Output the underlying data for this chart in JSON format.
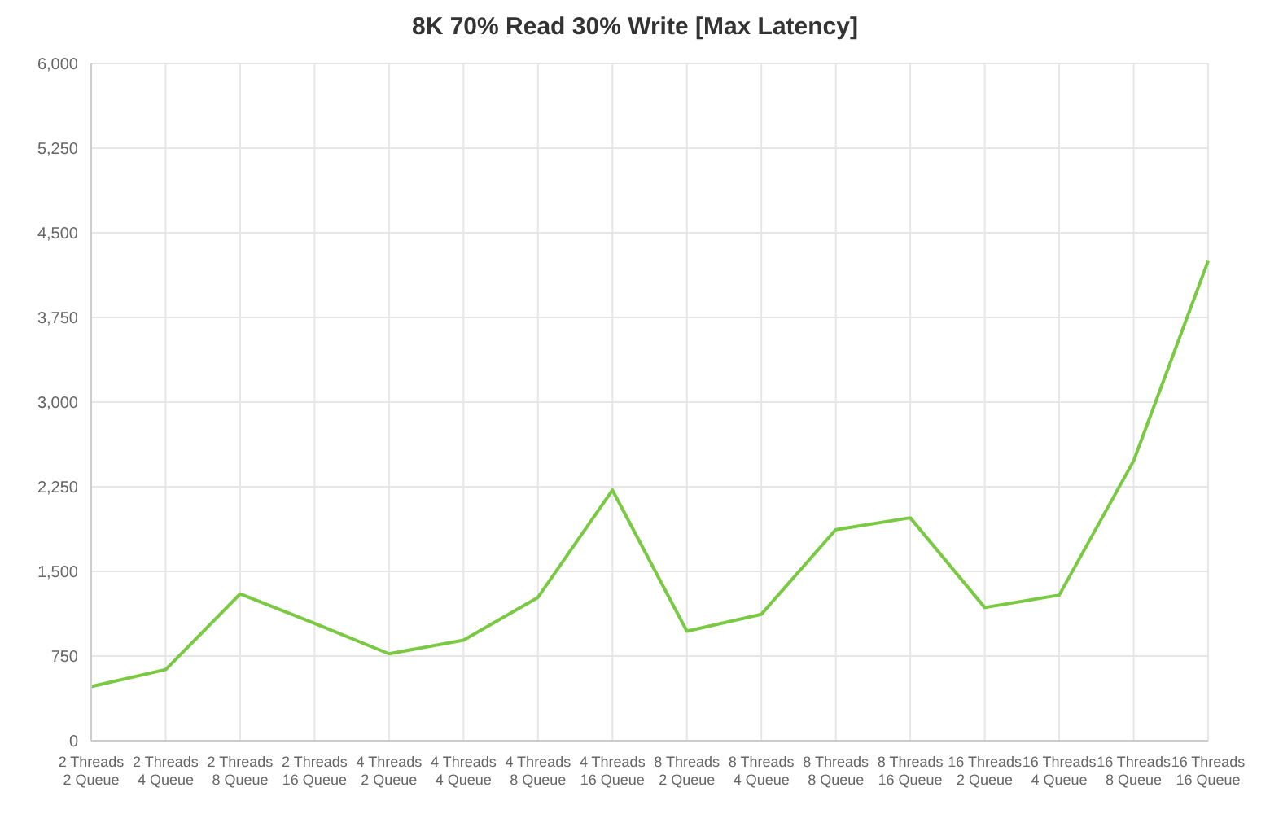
{
  "chart_data": {
    "type": "line",
    "title": "8K 70% Read 30% Write [Max Latency]",
    "categories": [
      "2 Threads 2 Queue",
      "2 Threads 4 Queue",
      "2 Threads 8 Queue",
      "2 Threads 16 Queue",
      "4 Threads 2 Queue",
      "4 Threads 4 Queue",
      "4 Threads 8 Queue",
      "4 Threads 16 Queue",
      "8 Threads 2 Queue",
      "8 Threads 4 Queue",
      "8 Threads 8 Queue",
      "8 Threads 16 Queue",
      "16 Threads 2 Queue",
      "16 Threads 4 Queue",
      "16 Threads 8 Queue",
      "16 Threads 16 Queue"
    ],
    "series": [
      {
        "color": "#7ac943",
        "values": [
          480,
          630,
          1300,
          1040,
          770,
          890,
          1270,
          2220,
          970,
          1120,
          1870,
          1975,
          1180,
          1290,
          2480,
          4250
        ]
      }
    ],
    "ylim": [
      0,
      6000
    ],
    "yticks": [
      {
        "value": 0,
        "label": "0"
      },
      {
        "value": 750,
        "label": "750"
      },
      {
        "value": 1500,
        "label": "1,500"
      },
      {
        "value": 2250,
        "label": "2,250"
      },
      {
        "value": 3000,
        "label": "3,000"
      },
      {
        "value": 3750,
        "label": "3,750"
      },
      {
        "value": 4500,
        "label": "4,500"
      },
      {
        "value": 5250,
        "label": "5,250"
      },
      {
        "value": 6000,
        "label": "6,000"
      }
    ],
    "grid": true,
    "legend": false,
    "marker": "none",
    "line_style": "solid"
  }
}
